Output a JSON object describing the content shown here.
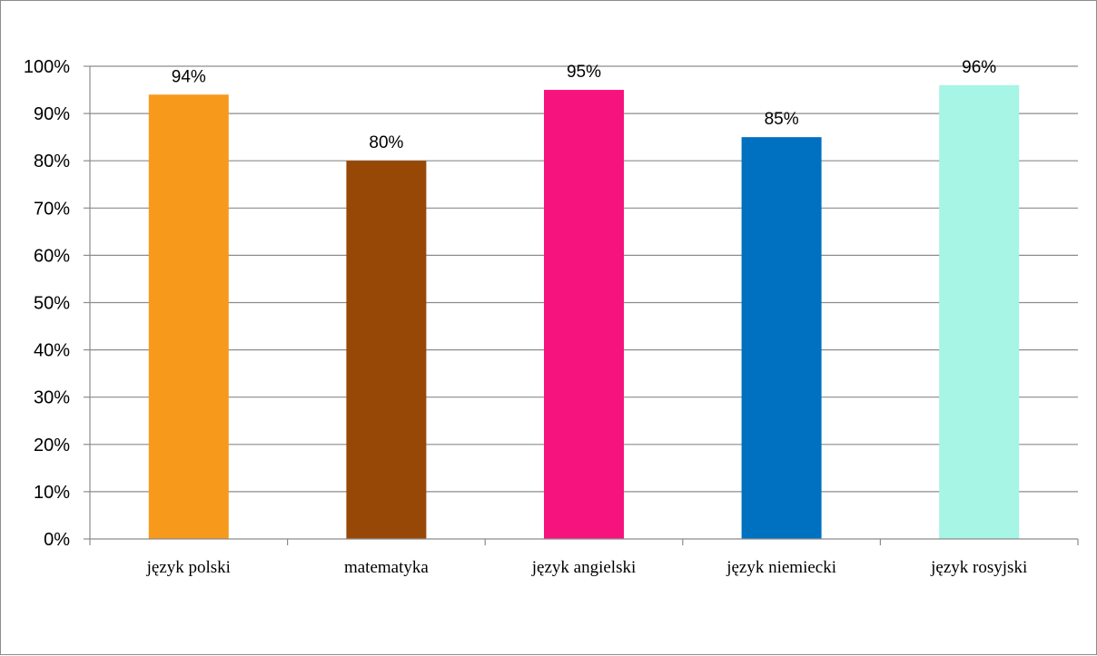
{
  "chart_data": {
    "type": "bar",
    "categories": [
      "język polski",
      "matematyka",
      "język angielski",
      "język niemiecki",
      "język rosyjski"
    ],
    "values": [
      94,
      80,
      95,
      85,
      96
    ],
    "data_labels": [
      "94%",
      "80%",
      "95%",
      "85%",
      "96%"
    ],
    "colors": [
      "#f7991a",
      "#974806",
      "#f7137e",
      "#0070c0",
      "#a6f5e5"
    ],
    "ylim": [
      0,
      100
    ],
    "ytick_values": [
      0,
      10,
      20,
      30,
      40,
      50,
      60,
      70,
      80,
      90,
      100
    ],
    "ytick_labels": [
      "0%",
      "10%",
      "20%",
      "30%",
      "40%",
      "50%",
      "60%",
      "70%",
      "80%",
      "90%",
      "100%"
    ],
    "grid": true,
    "gridline_color": "#8c8c8c",
    "title": "",
    "xlabel": "",
    "ylabel": "",
    "legend": "none"
  }
}
